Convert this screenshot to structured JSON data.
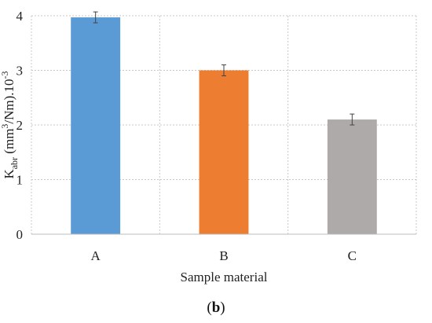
{
  "chart_data": {
    "type": "bar",
    "categories": [
      "A",
      "B",
      "C"
    ],
    "values": [
      3.97,
      3.0,
      2.1
    ],
    "error": [
      0.1,
      0.1,
      0.1
    ],
    "colors": [
      "#5b9bd5",
      "#ed7d31",
      "#aeaaaa"
    ],
    "xlabel": "Sample material",
    "ylabel": {
      "base": "K",
      "sub": "abr",
      "mid": " (mm",
      "sup1": "3",
      "rest": "/Nm).10",
      "sup2": "-3"
    },
    "ylim": [
      0,
      4
    ],
    "yticks": [
      "0",
      "1",
      "2",
      "3",
      "4"
    ],
    "grid": true
  },
  "panel_label": {
    "open": "(",
    "letter": "b",
    "close": ")"
  }
}
